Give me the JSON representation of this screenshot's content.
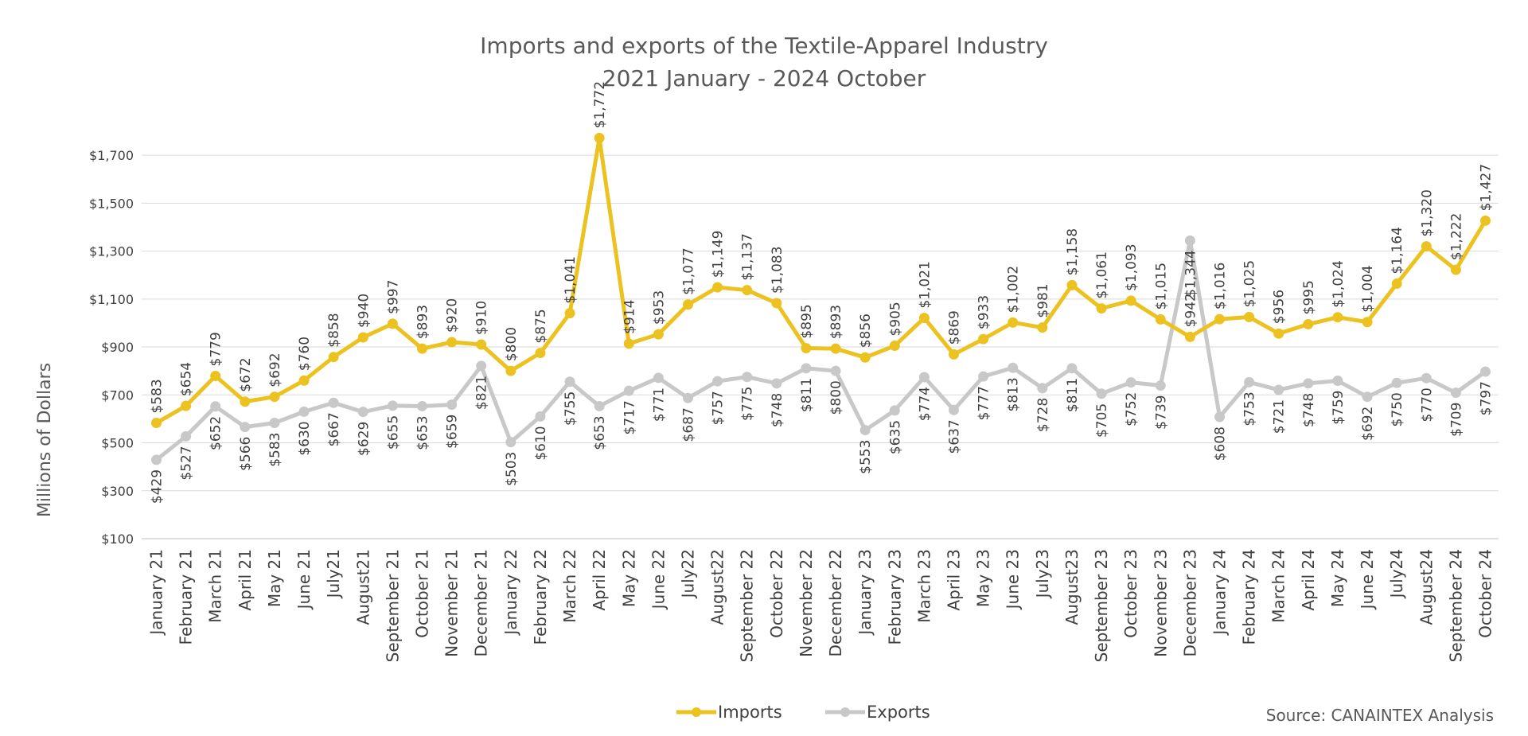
{
  "chart_data": {
    "type": "line",
    "title": "Imports and exports of the Textile-Apparel Industry",
    "subtitle": "2021 January - 2024 October",
    "ylabel": "Millions of Dollars",
    "xlabel": "",
    "ylim": [
      100,
      1800
    ],
    "yticks": [
      100,
      300,
      500,
      700,
      900,
      1100,
      1300,
      1500,
      1700
    ],
    "ytick_labels": [
      "$100",
      "$300",
      "$500",
      "$700",
      "$900",
      "$1,100",
      "$1,300",
      "$1,500",
      "$1,700"
    ],
    "grid": true,
    "legend_position": "bottom",
    "source": "Source: CANAINTEX Analysis",
    "categories": [
      "January 21",
      "February 21",
      "March 21",
      "April 21",
      "May 21",
      "June 21",
      "July21",
      "August21",
      "September 21",
      "October 21",
      "November 21",
      "December 21",
      "January 22",
      "February 22",
      "March 22",
      "April 22",
      "May 22",
      "June 22",
      "July22",
      "August22",
      "September 22",
      "October 22",
      "November 22",
      "December 22",
      "January 23",
      "February 23",
      "March 23",
      "April 23",
      "May 23",
      "June 23",
      "July23",
      "August23",
      "September 23",
      "October 23",
      "November 23",
      "December 23",
      "January 24",
      "February 24",
      "March 24",
      "April 24",
      "May 24",
      "June 24",
      "July24",
      "August24",
      "September 24",
      "October 24"
    ],
    "series": [
      {
        "name": "Imports",
        "color": "#EBC21F",
        "values": [
          583,
          654,
          779,
          672,
          692,
          760,
          858,
          940,
          997,
          893,
          920,
          910,
          800,
          875,
          1041,
          1772,
          914,
          953,
          1077,
          1149,
          1137,
          1083,
          895,
          893,
          856,
          905,
          1021,
          869,
          933,
          1002,
          981,
          1158,
          1061,
          1093,
          1015,
          942,
          1016,
          1025,
          956,
          995,
          1024,
          1004,
          1164,
          1320,
          1222,
          1427
        ],
        "labels": [
          "$583",
          "$654",
          "$779",
          "$672",
          "$692",
          "$760",
          "$858",
          "$940",
          "$997",
          "$893",
          "$920",
          "$910",
          "$800",
          "$875",
          "$1,041",
          "$1,772",
          "$914",
          "$953",
          "$1,077",
          "$1,149",
          "$1,137",
          "$1,083",
          "$895",
          "$893",
          "$856",
          "$905",
          "$1,021",
          "$869",
          "$933",
          "$1,002",
          "$981",
          "$1,158",
          "$1,061",
          "$1,093",
          "$1,015",
          "$942",
          "$1,016",
          "$1,025",
          "$956",
          "$995",
          "$1,024",
          "$1,004",
          "$1,164",
          "$1,320",
          "$1,222",
          "$1,427"
        ]
      },
      {
        "name": "Exports",
        "color": "#C8C8C8",
        "values": [
          429,
          527,
          652,
          566,
          583,
          630,
          667,
          629,
          655,
          653,
          659,
          821,
          503,
          610,
          755,
          653,
          717,
          771,
          687,
          757,
          775,
          748,
          811,
          800,
          553,
          635,
          774,
          637,
          777,
          813,
          728,
          811,
          705,
          752,
          739,
          1344,
          608,
          753,
          721,
          748,
          759,
          692,
          750,
          770,
          709,
          797
        ],
        "labels": [
          "$429",
          "$527",
          "$652",
          "$566",
          "$583",
          "$630",
          "$667",
          "$629",
          "$655",
          "$653",
          "$659",
          "$821",
          "$503",
          "$610",
          "$755",
          "$653",
          "$717",
          "$771",
          "$687",
          "$757",
          "$775",
          "$748",
          "$811",
          "$800",
          "$553",
          "$635",
          "$774",
          "$637",
          "$777",
          "$813",
          "$728",
          "$811",
          "$705",
          "$752",
          "$739",
          "$1,344",
          "$608",
          "$753",
          "$721",
          "$748",
          "$759",
          "$692",
          "$750",
          "$770",
          "$709",
          "$797"
        ]
      }
    ]
  }
}
